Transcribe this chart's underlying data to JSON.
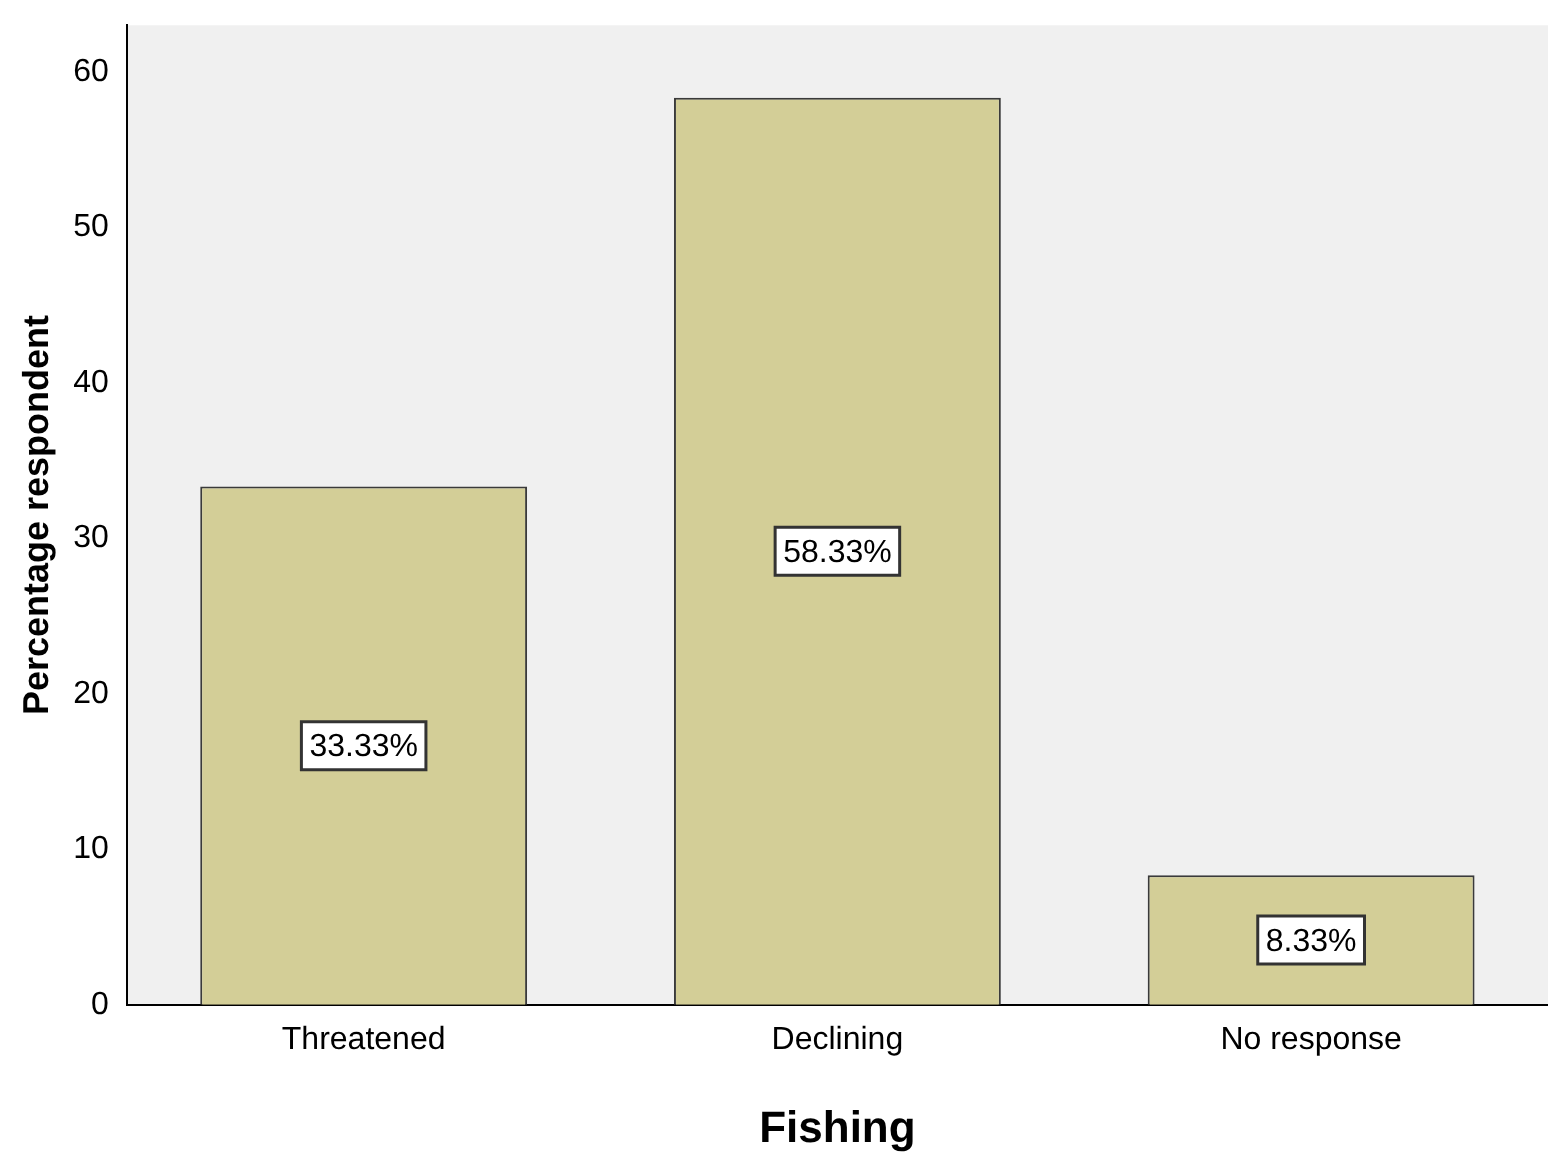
{
  "chart_data": {
    "type": "bar",
    "xlabel": "Fishing",
    "ylabel": "Percentage respondent",
    "categories": [
      "Threatened",
      "Declining",
      "No response"
    ],
    "values": [
      33.33,
      58.33,
      8.33
    ],
    "value_labels": [
      "33.33%",
      "58.33%",
      "8.33%"
    ],
    "color": "#d3ce97",
    "ylim": [
      0,
      63
    ],
    "yticks": [
      0,
      10,
      20,
      30,
      40,
      50,
      60
    ],
    "grid": false,
    "legend": false
  }
}
